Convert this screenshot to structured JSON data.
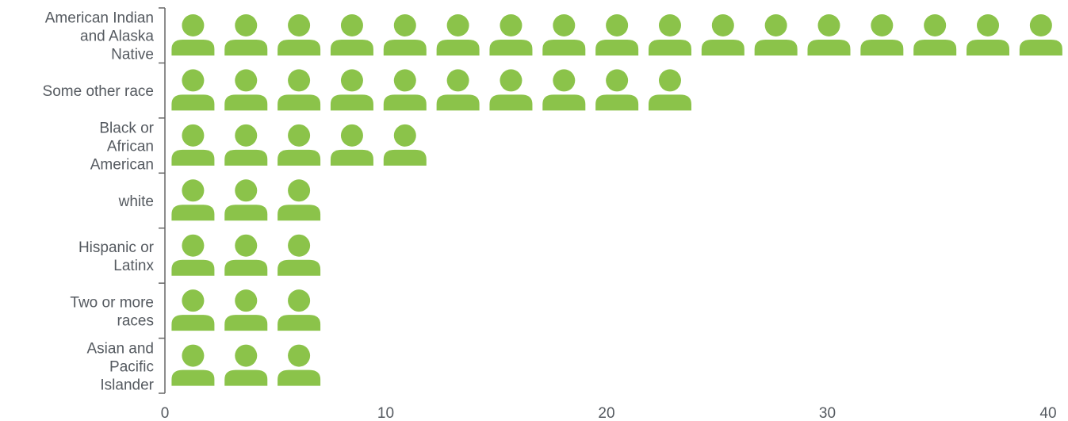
{
  "chart_data": {
    "type": "bar",
    "style": "pictograph",
    "icon": "person-icon",
    "color": "#8bc34a",
    "categories": [
      [
        "American Indian",
        "and Alaska",
        "Native"
      ],
      [
        "Some other race"
      ],
      [
        "Black or",
        "African",
        "American"
      ],
      [
        "white"
      ],
      [
        "Hispanic or",
        "Latinx"
      ],
      [
        "Two or more",
        "races"
      ],
      [
        "Asian and",
        "Pacific",
        "Islander"
      ]
    ],
    "values": [
      40,
      23,
      11,
      7,
      7,
      7,
      7
    ],
    "units_per_icon": 2.4,
    "xlim": [
      0,
      40
    ],
    "xticks": [
      0,
      10,
      20,
      30,
      40
    ],
    "title": "",
    "xlabel": "",
    "ylabel": "",
    "grid": false,
    "legend": "none"
  }
}
